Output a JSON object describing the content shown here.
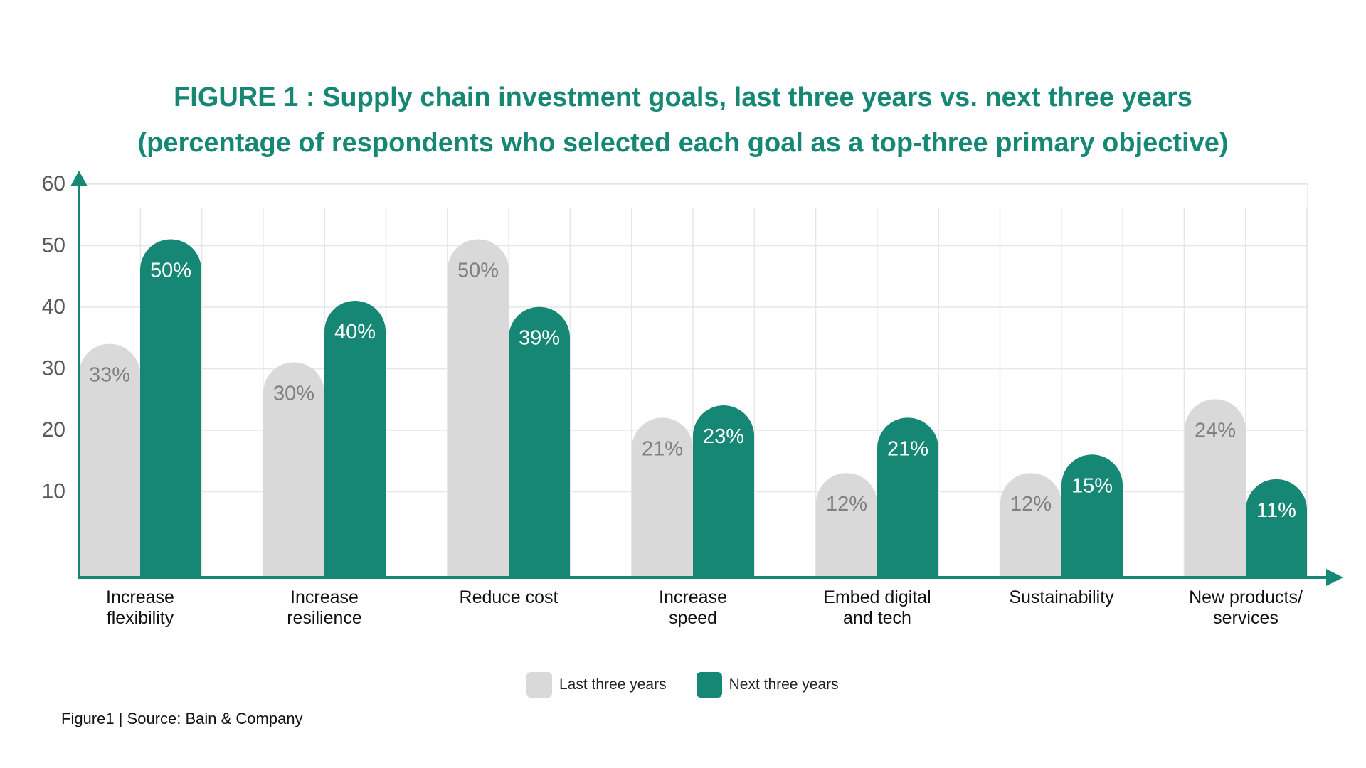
{
  "title_line1": "FIGURE 1 : Supply chain investment goals, last three years vs. next three years",
  "title_line2": "(percentage of respondents who selected each goal as a top-three primary objective)",
  "source": "Figure1 | Source: Bain & Company",
  "colors": {
    "last": "#d9d9d9",
    "next": "#168775",
    "axis": "#168775",
    "grid": "#e6e6e6",
    "title": "#168775",
    "label_last": "#808080",
    "label_next": "#ffffff"
  },
  "chart_data": {
    "type": "bar",
    "title": "FIGURE 1 : Supply chain investment goals, last three years vs. next three years (percentage of respondents who selected each goal as a top-three primary objective)",
    "categories": [
      [
        "Increase",
        "flexibility"
      ],
      [
        "Increase",
        "resilience"
      ],
      [
        "Reduce cost"
      ],
      [
        "Increase",
        "speed"
      ],
      [
        "Embed digital",
        "and tech"
      ],
      [
        "Sustainability"
      ],
      [
        "New products/",
        "services"
      ]
    ],
    "series": [
      {
        "name": "Last three years",
        "values": [
          33,
          30,
          50,
          21,
          12,
          12,
          24
        ]
      },
      {
        "name": "Next three years",
        "values": [
          50,
          40,
          39,
          23,
          21,
          15,
          11
        ]
      }
    ],
    "value_suffix": "%",
    "yticks": [
      10,
      20,
      30,
      40,
      50,
      60
    ],
    "ylim": [
      0,
      60
    ],
    "xlabel": "",
    "ylabel": "",
    "legend": "bottom-center",
    "grid": true
  }
}
